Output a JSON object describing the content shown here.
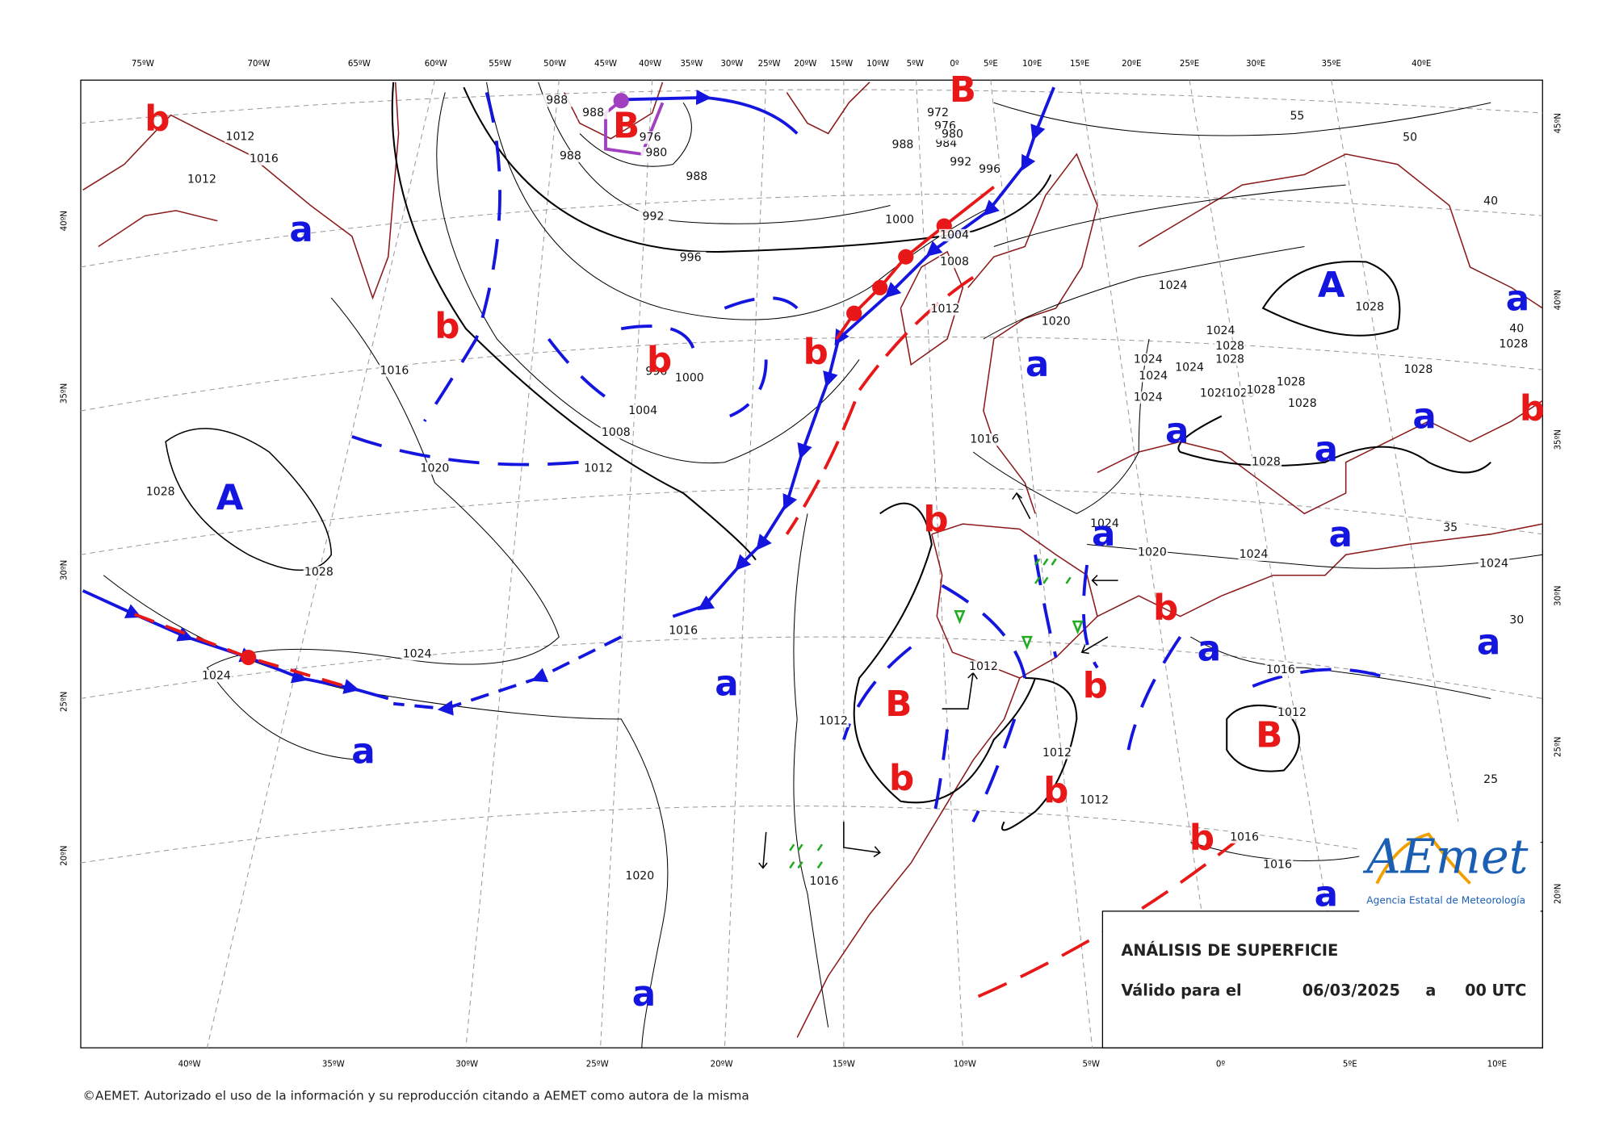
{
  "map": {
    "top_longitudes": [
      "75ºW",
      "70ºW",
      "65ºW",
      "60ºW",
      "55ºW",
      "50ºW",
      "45ºW",
      "40ºW",
      "35ºW",
      "30ºW",
      "25ºW",
      "20ºW",
      "15ºW",
      "10ºW",
      "5ºW",
      "0º",
      "5ºE",
      "10ºE",
      "15ºE",
      "20ºE",
      "25ºE",
      "30ºE",
      "35ºE",
      "40ºE"
    ],
    "bottom_longitudes": [
      "40ºW",
      "35ºW",
      "30ºW",
      "25ºW",
      "20ºW",
      "15ºW",
      "10ºW",
      "5ºW",
      "0º",
      "5ºE",
      "10ºE"
    ],
    "left_latitudes": [
      "40ºN",
      "35ºN",
      "30ºN",
      "25ºN",
      "20ºN"
    ],
    "right_latitudes": [
      "45ºN",
      "40ºN",
      "35ºN",
      "30ºN",
      "25ºN",
      "20ºN"
    ],
    "pressure_centers": [
      "b",
      "a",
      "b",
      "A",
      "a",
      "B",
      "b",
      "b",
      "a",
      "B",
      "a",
      "A",
      "a",
      "a",
      "b",
      "a",
      "a",
      "a",
      "b",
      "a",
      "b",
      "a",
      "a",
      "b",
      "B",
      "b",
      "b",
      "B",
      "b",
      "a",
      "a"
    ],
    "isobar_labels": [
      1012,
      1016,
      1012,
      988,
      988,
      976,
      980,
      988,
      988,
      992,
      996,
      988,
      984,
      992,
      996,
      976,
      980,
      972,
      1000,
      1004,
      1008,
      1012,
      1016,
      1000,
      996,
      1004,
      1008,
      1012,
      1020,
      1028,
      1028,
      1024,
      1024,
      1016,
      1020,
      1016,
      1012,
      1012,
      1012,
      1012,
      1016,
      1020,
      1024,
      1024,
      1024,
      1024,
      1024,
      1024,
      1028,
      1028,
      1028,
      1028,
      1028,
      1028,
      1028,
      1028,
      1028,
      1028,
      1028,
      1024,
      1020,
      1024,
      1024,
      1016,
      1012,
      1016,
      1016,
      55,
      50,
      40,
      40,
      35,
      30,
      25
    ]
  },
  "info_box": {
    "title": "ANÁLISIS DE SUPERFICIE",
    "valid_label": "Válido para el",
    "date": "06/03/2025",
    "connector": "a",
    "time": "00 UTC"
  },
  "logo": {
    "name": "AEmet",
    "subtitle": "Agencia Estatal de Meteorología"
  },
  "footer": {
    "copyright": "©AEMET. Autorizado el uso de la información y su reproducción citando a AEMET como autora de la misma"
  }
}
